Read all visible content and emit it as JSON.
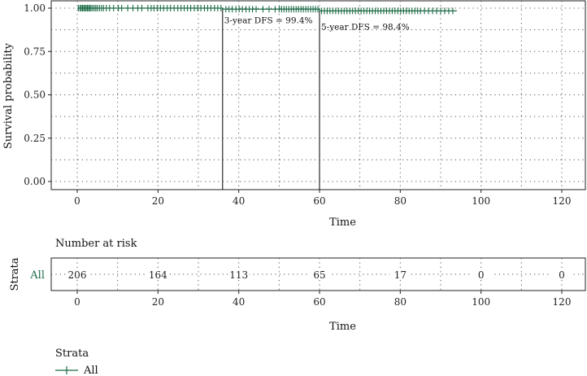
{
  "chart_data": {
    "type": "line",
    "km_plot": {
      "ylabel": "Survival probability",
      "xlabel": "Time",
      "xlim": [
        0,
        120
      ],
      "ylim": [
        0,
        1
      ],
      "x_ticks": [
        0,
        20,
        40,
        60,
        80,
        100,
        120
      ],
      "x_tick_labels": [
        "0",
        "20",
        "40",
        "60",
        "80",
        "100",
        "120"
      ],
      "y_ticks": [
        0,
        0.25,
        0.5,
        0.75,
        1.0
      ],
      "y_tick_labels": [
        "0.00",
        "0.25",
        "0.50",
        "0.75",
        "1.00"
      ],
      "grid": true,
      "series": [
        {
          "name": "All",
          "color": "#1b6b45",
          "steps": [
            [
              0,
              1.0
            ],
            [
              36,
              0.994
            ],
            [
              60,
              0.984
            ],
            [
              94,
              0.984
            ]
          ],
          "censor_times": [
            0.3,
            0.7,
            1.0,
            1.3,
            1.6,
            1.9,
            2.2,
            2.5,
            2.8,
            3.1,
            3.4,
            3.8,
            4.2,
            4.6,
            5.0,
            5.5,
            6.0,
            6.5,
            7.2,
            8.0,
            9.0,
            10.2,
            11.0,
            12.5,
            13.8,
            15.0,
            16.0,
            17.5,
            18.3,
            19.0,
            19.8,
            20.6,
            21.4,
            22.3,
            23.1,
            24.0,
            24.9,
            25.7,
            26.5,
            27.3,
            28.1,
            29.0,
            29.8,
            30.6,
            31.5,
            32.3,
            33.1,
            34.0,
            34.8,
            35.6,
            36.8,
            37.6,
            38.4,
            39.3,
            40.1,
            40.9,
            41.8,
            42.6,
            43.4,
            44.3,
            46.0,
            47.5,
            49.0,
            50.0,
            50.6,
            51.2,
            51.8,
            52.4,
            53.0,
            53.6,
            54.2,
            54.8,
            55.4,
            56.0,
            56.6,
            57.2,
            57.8,
            58.4,
            59.0,
            59.6,
            60.5,
            61.2,
            61.9,
            62.6,
            63.3,
            64.0,
            64.7,
            65.4,
            66.1,
            66.8,
            67.5,
            68.2,
            68.9,
            69.6,
            70.3,
            71.0,
            71.7,
            72.4,
            73.1,
            73.8,
            74.5,
            75.2,
            75.9,
            76.6,
            77.3,
            78.0,
            78.7,
            79.4,
            80.1,
            80.8,
            81.5,
            82.2,
            82.9,
            83.6,
            84.3,
            85.0,
            86.0,
            87.0,
            88.0,
            89.0,
            90.0,
            91.0,
            92.0,
            93.0
          ],
          "reference_lines": [
            {
              "x": 36,
              "y": 0.994,
              "label": "3-year DFS = 99.4%"
            },
            {
              "x": 60,
              "y": 0.984,
              "label": "5-year DFS = 98.4%"
            }
          ]
        }
      ]
    },
    "risk_table": {
      "title": "Number at risk",
      "ylabel": "Strata",
      "xlabel": "Time",
      "strata_label": "All",
      "times": [
        0,
        20,
        40,
        60,
        80,
        100,
        120
      ],
      "counts": [
        "206",
        "164",
        "113",
        "65",
        "17",
        "0",
        "0"
      ],
      "x_tick_labels": [
        "0",
        "20",
        "40",
        "60",
        "80",
        "100",
        "120"
      ]
    },
    "legend": {
      "title": "Strata",
      "items": [
        {
          "label": "All",
          "color": "#1b6b45"
        }
      ],
      "position": "bottom-left"
    }
  }
}
